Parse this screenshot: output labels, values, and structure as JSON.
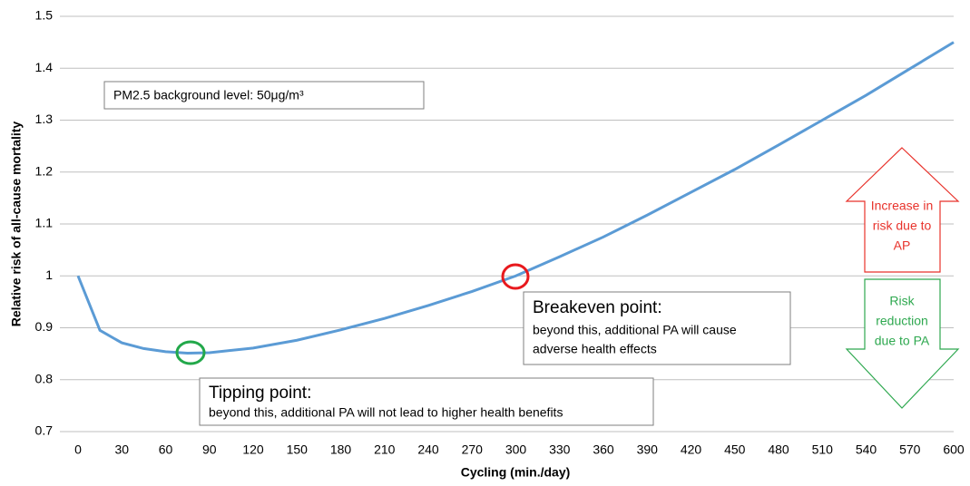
{
  "chart_data": {
    "type": "line",
    "x_label": "Cycling (min./day)",
    "y_label": "Relative risk of all-cause mortality",
    "series": [
      {
        "name": "Relative risk",
        "color": "#5b9bd5",
        "x": [
          0,
          15,
          30,
          45,
          60,
          75,
          90,
          120,
          150,
          180,
          210,
          240,
          270,
          300,
          330,
          360,
          390,
          420,
          450,
          480,
          510,
          540,
          570,
          600
        ],
        "values": [
          1.0,
          0.895,
          0.871,
          0.86,
          0.854,
          0.851,
          0.852,
          0.861,
          0.876,
          0.896,
          0.918,
          0.943,
          0.97,
          1.0,
          1.037,
          1.075,
          1.117,
          1.161,
          1.205,
          1.252,
          1.3,
          1.348,
          1.399,
          1.45
        ]
      }
    ],
    "xlim": [
      0,
      600
    ],
    "xticks": [
      0,
      30,
      60,
      90,
      120,
      150,
      180,
      210,
      240,
      270,
      300,
      330,
      360,
      390,
      420,
      450,
      480,
      510,
      540,
      570,
      600
    ],
    "ylim": [
      0.7,
      1.5
    ],
    "yticks": [
      0.7,
      0.8,
      0.9,
      1,
      1.1,
      1.2,
      1.3,
      1.4,
      1.5
    ],
    "grid": true,
    "annotations": {
      "background": "PM2.5 background level: 50μg/m³",
      "breakeven_title": "Breakeven point:",
      "breakeven_text": [
        "beyond this, additional PA will cause",
        "adverse health effects"
      ],
      "tipping_title": "Tipping point:",
      "tipping_text": "beyond this, additional PA will not lead to higher health benefits",
      "increase": [
        "Increase in",
        "risk due to",
        "AP"
      ],
      "reduction": [
        "Risk",
        "reduction",
        "due to PA"
      ]
    }
  }
}
